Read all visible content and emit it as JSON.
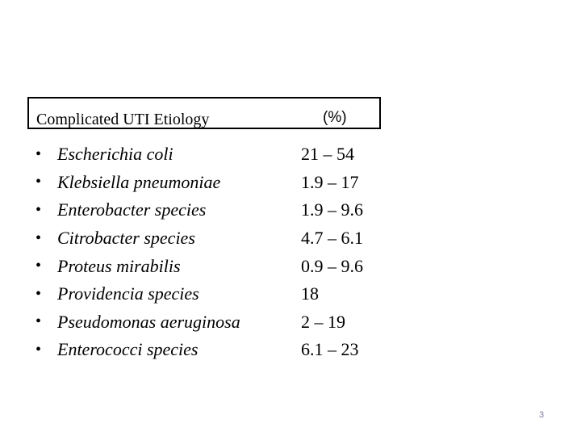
{
  "header": {
    "title": "Complicated UTI Etiology",
    "column_label": "(%)"
  },
  "organisms": [
    {
      "name": "Escherichia coli",
      "percent": "21 – 54"
    },
    {
      "name": "Klebsiella pneumoniae",
      "percent": "1.9 – 17"
    },
    {
      "name": "Enterobacter species",
      "percent": "1.9 – 9.6"
    },
    {
      "name": "Citrobacter species",
      "percent": "4.7 – 6.1"
    },
    {
      "name": "Proteus mirabilis",
      "percent": "0.9 – 9.6"
    },
    {
      "name": "Providencia species",
      "percent": "18"
    },
    {
      "name": "Pseudomonas aeruginosa",
      "percent": "2 – 19"
    },
    {
      "name": "Enterococci species",
      "percent": "6.1 – 23"
    }
  ],
  "bullet_glyph": "•",
  "page_number": "3"
}
